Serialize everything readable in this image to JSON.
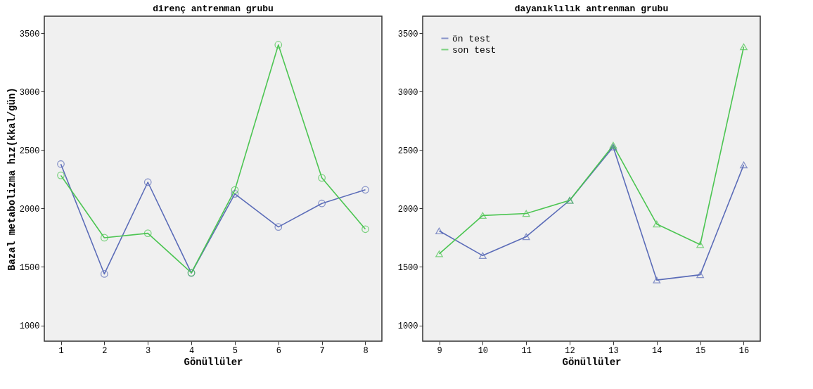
{
  "chart_data": [
    {
      "type": "line",
      "title": "direnç antrenman grubu",
      "xlabel": "Gönüllüler",
      "ylabel": "Bazal metabolizma hız(kkal/gün)",
      "x": [
        1,
        2,
        3,
        4,
        5,
        6,
        7,
        8
      ],
      "xlim": [
        0.62,
        8.38
      ],
      "xticks": [
        1,
        2,
        3,
        4,
        5,
        6,
        7,
        8
      ],
      "ylim": [
        865,
        3645
      ],
      "yticks": [
        1000,
        1500,
        2000,
        2500,
        3000,
        3500
      ],
      "marker": "circle",
      "legend": false,
      "grid": false,
      "series": [
        {
          "color": "#5b6cb8",
          "values": [
            2380,
            1440,
            2225,
            1448,
            2125,
            1842,
            2043,
            2160
          ]
        },
        {
          "color": "#4cc552",
          "values": [
            2283,
            1750,
            1788,
            1450,
            2158,
            3400,
            2262,
            1823
          ]
        }
      ]
    },
    {
      "type": "line",
      "title": "dayanıklılık antrenman grubu",
      "xlabel": "Gönüllüler",
      "x": [
        9,
        10,
        11,
        12,
        13,
        14,
        15,
        16
      ],
      "xlim": [
        8.62,
        16.38
      ],
      "xticks": [
        9,
        10,
        11,
        12,
        13,
        14,
        15,
        16
      ],
      "ylim": [
        865,
        3645
      ],
      "yticks": [
        1000,
        1500,
        2000,
        2500,
        3000,
        3500
      ],
      "marker": "triangle",
      "legend": "top left",
      "grid": false,
      "series": [
        {
          "name": "ön test",
          "color": "#5b6cb8",
          "values": [
            1808,
            1597,
            1759,
            2070,
            2526,
            1388,
            1433,
            2373
          ]
        },
        {
          "name": "son test",
          "color": "#4cc552",
          "values": [
            1612,
            1940,
            1957,
            2070,
            2541,
            1867,
            1691,
            3383
          ]
        }
      ]
    }
  ]
}
